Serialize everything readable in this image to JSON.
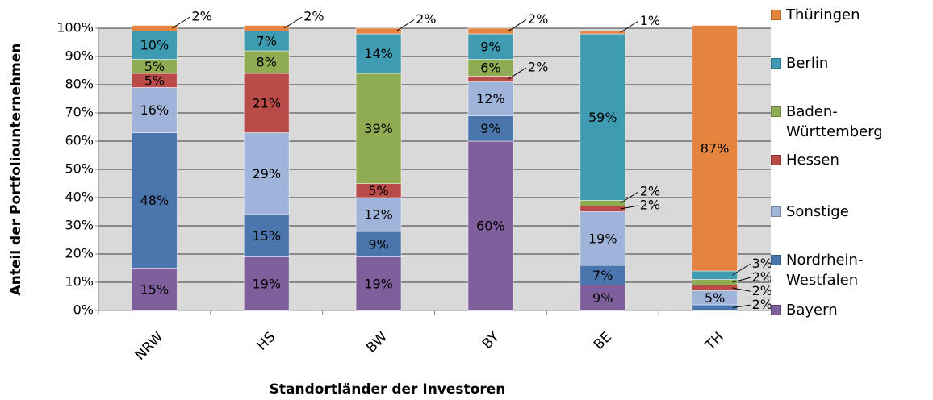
{
  "chart_data": {
    "type": "stacked-bar",
    "x_label": "Standortländer der Investoren",
    "y_label": "Anteil der Portfoliounternehmen",
    "categories": [
      "NRW",
      "HS",
      "BW",
      "BY",
      "BE",
      "TH"
    ],
    "series": [
      {
        "name": "Bayern",
        "color": "#7e5f9b",
        "values": [
          15,
          19,
          19,
          60,
          9,
          null
        ],
        "value_labels": [
          "15%",
          "19%",
          "19%",
          "60%",
          "9%",
          null
        ]
      },
      {
        "name": "Nordrhein-Westfalen",
        "color": "#4a76ad",
        "values": [
          48,
          15,
          9,
          9,
          7,
          2
        ],
        "value_labels": [
          "48%",
          "15%",
          "9%",
          "9%",
          "7%",
          "2%"
        ]
      },
      {
        "name": "Sonstige",
        "color": "#a0b3d8",
        "values": [
          16,
          29,
          12,
          12,
          19,
          5
        ],
        "value_labels": [
          "16%",
          "29%",
          "12%",
          "12%",
          "19%",
          "5%"
        ]
      },
      {
        "name": "Hessen",
        "color": "#b94b48",
        "values": [
          5,
          21,
          5,
          2,
          2,
          2
        ],
        "value_labels": [
          "5%",
          "21%",
          "5%",
          "2%",
          "2%",
          "2%"
        ]
      },
      {
        "name": "Baden-Württemberg",
        "color": "#8fac52",
        "values": [
          5,
          8,
          39,
          6,
          2,
          2
        ],
        "value_labels": [
          "5%",
          "8%",
          "39%",
          "6%",
          "2%",
          "2%"
        ]
      },
      {
        "name": "Berlin",
        "color": "#3e9bb1",
        "values": [
          10,
          7,
          14,
          9,
          59,
          3
        ],
        "value_labels": [
          "10%",
          "7%",
          "14%",
          "9%",
          "59%",
          "3%"
        ]
      },
      {
        "name": "Thüringen",
        "color": "#e5843f",
        "values": [
          2,
          2,
          2,
          2,
          1,
          87
        ],
        "value_labels": [
          "2%",
          "2%",
          "2%",
          "2%",
          "1%",
          "87%"
        ]
      }
    ],
    "ylim": [
      0,
      100
    ],
    "yticks": [
      {
        "value": 0,
        "label": "0%"
      },
      {
        "value": 10,
        "label": "10%"
      },
      {
        "value": 20,
        "label": "20%"
      },
      {
        "value": 30,
        "label": "30%"
      },
      {
        "value": 40,
        "label": "40%"
      },
      {
        "value": 50,
        "label": "50%"
      },
      {
        "value": 60,
        "label": "60%"
      },
      {
        "value": 70,
        "label": "70%"
      },
      {
        "value": 80,
        "label": "80%"
      },
      {
        "value": 90,
        "label": "90%"
      },
      {
        "value": 100,
        "label": "100%"
      }
    ],
    "grid": true
  }
}
